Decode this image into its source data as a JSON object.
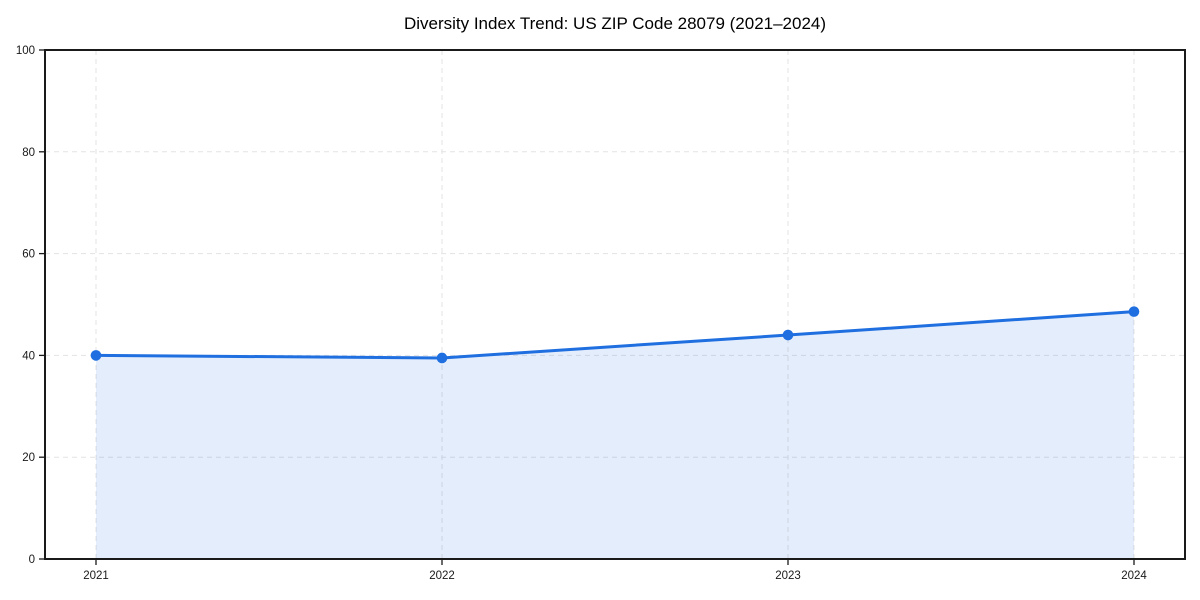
{
  "chart_data": {
    "type": "area",
    "title": "Diversity Index Trend: US ZIP Code 28079 (2021–2024)",
    "categories": [
      "2021",
      "2022",
      "2023",
      "2024"
    ],
    "series": [
      {
        "name": "Diversity Index",
        "values": [
          40.0,
          39.5,
          44.0,
          48.6
        ]
      }
    ],
    "xlabel": "",
    "ylabel": "",
    "ylim": [
      0,
      100
    ],
    "yticks": [
      0,
      20,
      40,
      60,
      80,
      100
    ],
    "grid": true,
    "grid_style": "dashed",
    "legend_position": "none",
    "colors": {
      "line": "#1f6fe0",
      "marker": "#1f6fe0",
      "fill": "rgba(31, 111, 224, 0.12)",
      "grid": "#e3e3e3",
      "spine": "#1a1a1a",
      "tick_text": "#1a1a1a",
      "background": "#ffffff"
    }
  }
}
